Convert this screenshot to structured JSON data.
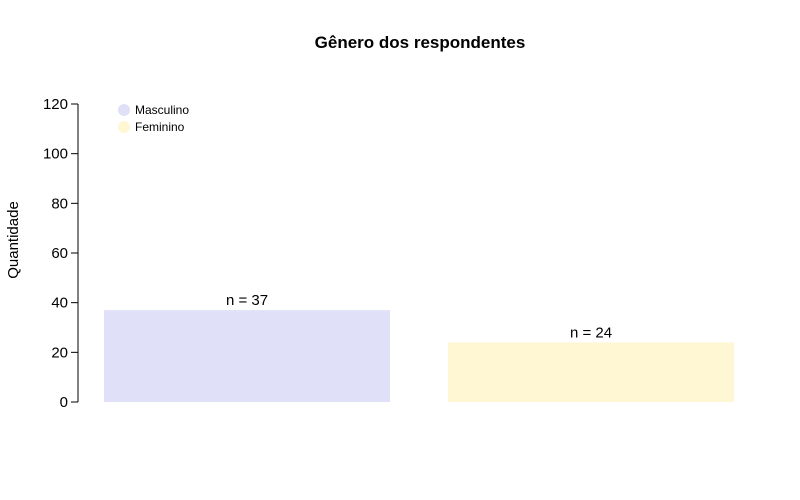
{
  "chart_data": {
    "type": "bar",
    "title": "Gênero dos respondentes",
    "xlabel": "",
    "ylabel": "Quantidade",
    "categories": [
      "Masculino",
      "Feminino"
    ],
    "values": [
      37,
      24
    ],
    "data_labels": [
      "n = 37",
      "n = 24"
    ],
    "colors": [
      "#e0e0f8",
      "#fff6d4"
    ],
    "ylim": [
      0,
      120
    ],
    "yticks": [
      0,
      20,
      40,
      60,
      80,
      100,
      120
    ],
    "grid": false,
    "legend": {
      "placement": "top-left",
      "entries": [
        "Masculino",
        "Feminino"
      ]
    }
  }
}
